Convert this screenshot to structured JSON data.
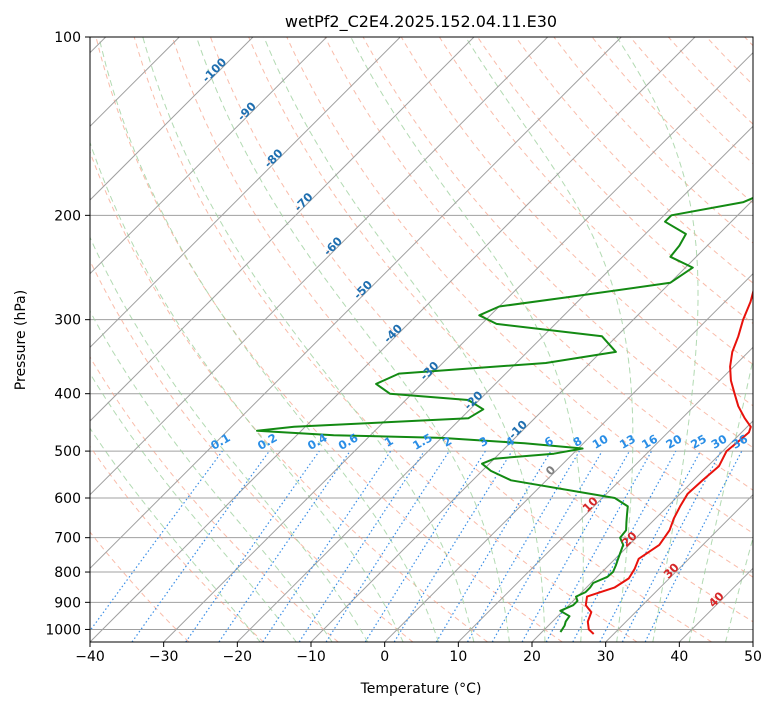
{
  "chart_data": {
    "type": "line",
    "title": "wetPf2_C2E4.2025.152.04.11.E30",
    "xlabel": "Temperature (°C)",
    "ylabel": "Pressure (hPa)",
    "xlim": [
      -40,
      50
    ],
    "ylim": [
      1050,
      100
    ],
    "y_scale": "log",
    "grid": true,
    "x_ticks": [
      "−40",
      "−30",
      "−20",
      "−10",
      "0",
      "10",
      "20",
      "30",
      "40",
      "50"
    ],
    "y_ticks": [
      "100",
      "200",
      "300",
      "400",
      "500",
      "600",
      "700",
      "800",
      "900",
      "1000"
    ],
    "colors": {
      "temperature": "#e8120c",
      "dewpoint": "#138a13",
      "isotherm": "#a0a0a0",
      "dry_adiabat": "#f7a58e",
      "moist_adiabat": "#9fd19f",
      "mixing_ratio": "#3a8ee6",
      "isotherm_label": "#1f6fb0",
      "adiabat_label": "#d62728",
      "mixing_ratio_label": "#2a8ee6"
    },
    "series": [
      {
        "key": "temperature",
        "pressure": [
          1018,
          1000,
          970,
          935,
          910,
          880,
          850,
          820,
          790,
          760,
          720,
          680,
          650,
          620,
          590,
          560,
          530,
          500,
          480,
          465,
          455,
          440,
          420,
          400,
          380,
          360,
          340,
          320,
          300,
          280,
          260,
          240,
          220,
          200,
          185,
          170,
          160,
          150,
          140,
          130,
          120,
          110,
          100
        ],
        "temperature": [
          27.3,
          26.0,
          24.8,
          24.0,
          22.3,
          21.3,
          23.8,
          24.5,
          24.0,
          23.2,
          24.1,
          23.5,
          22.5,
          21.7,
          21.0,
          21.2,
          21.5,
          20.5,
          20.8,
          21.0,
          20.5,
          18.5,
          16.0,
          13.8,
          11.5,
          9.5,
          7.8,
          6.5,
          4.9,
          3.5,
          1.6,
          0.2,
          -1.0,
          -3.0,
          -5.2,
          -7.5,
          -9.0,
          -10.8,
          -12.5,
          -14.0,
          -15.5,
          -16.5,
          -17.5
        ]
      },
      {
        "key": "dewpoint",
        "pressure": [
          1010,
          1000,
          985,
          970,
          950,
          930,
          910,
          895,
          880,
          865,
          850,
          835,
          815,
          800,
          780,
          760,
          740,
          720,
          700,
          680,
          660,
          640,
          620,
          600,
          560,
          540,
          525,
          515,
          505,
          495,
          485,
          475,
          470,
          462,
          455,
          440,
          425,
          410,
          400,
          385,
          370,
          355,
          340,
          320,
          305,
          295,
          285,
          275,
          260,
          245,
          235,
          225,
          215,
          205,
          200,
          190,
          180,
          170,
          160,
          150,
          140,
          132,
          125,
          115,
          110,
          105,
          100
        ],
        "temperature": [
          22.5,
          22.4,
          22.2,
          21.8,
          21.6,
          19.6,
          20.6,
          20.6,
          19.8,
          20.5,
          20.5,
          20.3,
          21.4,
          21.5,
          21.0,
          20.4,
          19.8,
          19.2,
          17.8,
          17.6,
          16.6,
          15.6,
          14.6,
          11.7,
          -4.8,
          -8.8,
          -11.0,
          -10.0,
          -2.6,
          0.6,
          -8.0,
          -20.0,
          -35.0,
          -46.0,
          -41.5,
          -19.0,
          -18.2,
          -21.5,
          -33.0,
          -36.2,
          -34.5,
          -16.0,
          -8.0,
          -12.0,
          -28.0,
          -31.5,
          -30.0,
          -22.0,
          -10.0,
          -9.0,
          -13.5,
          -13.8,
          -14.5,
          -19.0,
          -19.0,
          -11.0,
          -8.5,
          -6.2,
          -4.4,
          -2.8,
          -1.5,
          -1.0,
          -1.5,
          -0.7,
          0.4,
          2.0,
          3.3
        ]
      }
    ],
    "isotherm_labels": [
      {
        "temp": -100,
        "pressure": 115,
        "text": "-100"
      },
      {
        "temp": -90,
        "pressure": 135,
        "text": "-90"
      },
      {
        "temp": -80,
        "pressure": 162,
        "text": "-80"
      },
      {
        "temp": -70,
        "pressure": 192,
        "text": "-70"
      },
      {
        "temp": -60,
        "pressure": 228,
        "text": "-60"
      },
      {
        "temp": -50,
        "pressure": 270,
        "text": "-50"
      },
      {
        "temp": -40,
        "pressure": 320,
        "text": "-40"
      },
      {
        "temp": -30,
        "pressure": 370,
        "text": "-30"
      },
      {
        "temp": -20,
        "pressure": 415,
        "text": "-20"
      },
      {
        "temp": -10,
        "pressure": 465,
        "text": "-10"
      },
      {
        "temp": 0,
        "pressure": 545,
        "text": "0"
      }
    ],
    "dry_adiabat_labels": [
      {
        "temp": 10,
        "pressure": 622,
        "text": "10"
      },
      {
        "temp": 20,
        "pressure": 712,
        "text": "20"
      },
      {
        "temp": 30,
        "pressure": 805,
        "text": "30"
      },
      {
        "temp": 40,
        "pressure": 900,
        "text": "40"
      }
    ],
    "mixing_ratio_labels": [
      "0.1",
      "0.2",
      "0.4",
      "0.6",
      "1",
      "1.5",
      "2",
      "3",
      "4",
      "6",
      "8",
      "10",
      "13",
      "16",
      "20",
      "25",
      "30",
      "36"
    ]
  }
}
